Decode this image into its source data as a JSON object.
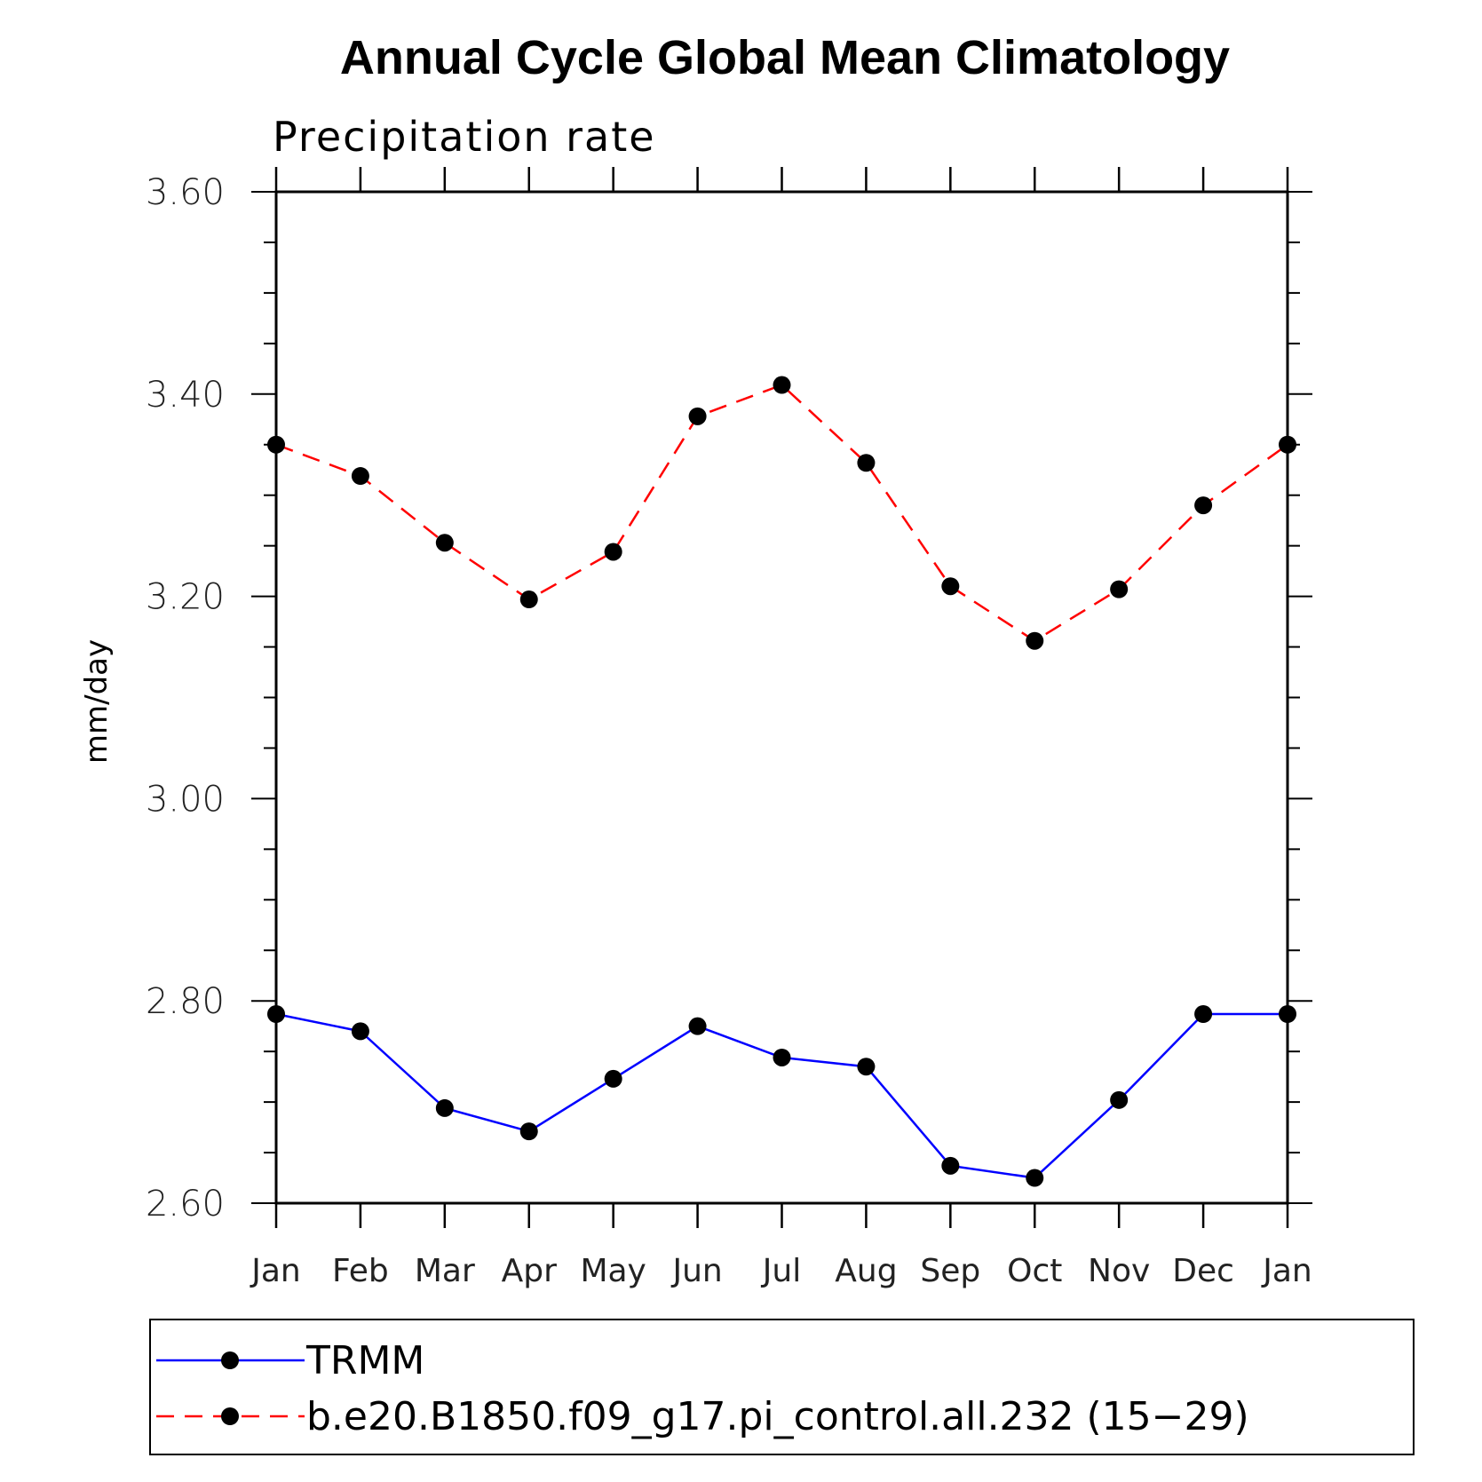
{
  "chart_data": {
    "type": "line",
    "title": "Annual Cycle Global Mean Climatology",
    "subtitle": "Precipitation rate",
    "ylabel": "mm/day",
    "xlabel": "",
    "ylim": [
      2.6,
      3.6
    ],
    "yticks": [
      2.6,
      2.8,
      3.0,
      3.2,
      3.4,
      3.6
    ],
    "ytick_labels": [
      "2.60",
      "2.80",
      "3.00",
      "3.20",
      "3.40",
      "3.60"
    ],
    "categories": [
      "Jan",
      "Feb",
      "Mar",
      "Apr",
      "May",
      "Jun",
      "Jul",
      "Aug",
      "Sep",
      "Oct",
      "Nov",
      "Dec",
      "Jan"
    ],
    "series": [
      {
        "name": "TRMM",
        "color": "#0000ff",
        "dash": "solid",
        "values": [
          2.787,
          2.77,
          2.694,
          2.671,
          2.723,
          2.775,
          2.744,
          2.735,
          2.637,
          2.625,
          2.702,
          2.787,
          2.787
        ]
      },
      {
        "name": "b.e20.B1850.f09_g17.pi_control.all.232 (15−29)",
        "color": "#ff0000",
        "dash": "dashed",
        "values": [
          3.35,
          3.319,
          3.253,
          3.197,
          3.244,
          3.378,
          3.409,
          3.332,
          3.21,
          3.156,
          3.207,
          3.29,
          3.35
        ]
      }
    ],
    "legend_position": "bottom"
  }
}
